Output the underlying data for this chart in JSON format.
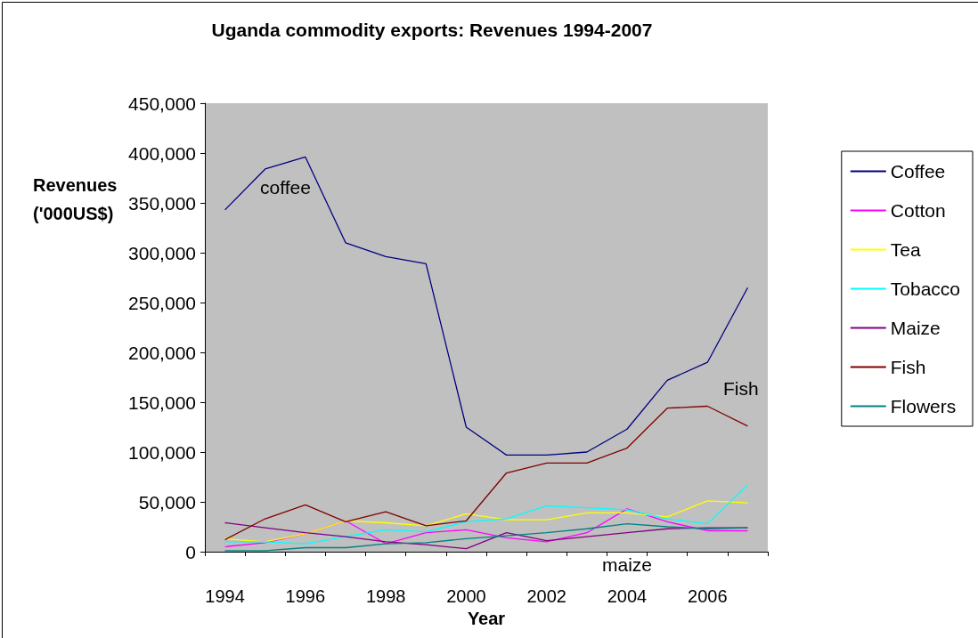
{
  "chart_data": {
    "type": "line",
    "title": "Uganda commodity exports: Revenues 1994-2007",
    "xlabel": "Year",
    "ylabel": "Revenues ('000US$)",
    "categories": [
      "1994",
      null,
      "1996",
      null,
      "1998",
      null,
      "2000",
      null,
      "2002",
      null,
      "2004",
      null,
      "2006",
      null
    ],
    "series": [
      {
        "name": "Coffee",
        "color": "#000080",
        "values": [
          343000,
          384000,
          396000,
          310000,
          296000,
          289000,
          125000,
          97000,
          97000,
          100000,
          123000,
          172000,
          190000,
          265000
        ]
      },
      {
        "name": "Cotton",
        "color": "#ff00ff",
        "values": [
          5000,
          9000,
          18000,
          31000,
          8000,
          19000,
          22000,
          14000,
          10000,
          19000,
          43000,
          30000,
          21000,
          21000
        ]
      },
      {
        "name": "Tea",
        "color": "#ffff00",
        "values": [
          13000,
          10000,
          18000,
          31000,
          29000,
          26000,
          38000,
          32000,
          32000,
          39000,
          39000,
          35000,
          51000,
          49000
        ]
      },
      {
        "name": "Tobacco",
        "color": "#00ffff",
        "values": [
          10000,
          10000,
          8000,
          15000,
          22000,
          20000,
          30000,
          33000,
          46000,
          44000,
          42000,
          33000,
          28000,
          67000
        ]
      },
      {
        "name": "Maize",
        "color": "#800080",
        "values": [
          29000,
          24000,
          19000,
          15000,
          10000,
          7000,
          3000,
          19000,
          11000,
          15000,
          19000,
          23000,
          24000,
          24000
        ]
      },
      {
        "name": "Fish",
        "color": "#800000",
        "values": [
          12000,
          33000,
          47000,
          30000,
          40000,
          26000,
          31000,
          79000,
          89000,
          89000,
          104000,
          144000,
          146000,
          126000
        ]
      },
      {
        "name": "Flowers",
        "color": "#008080",
        "values": [
          1000,
          1000,
          4000,
          4000,
          8000,
          9000,
          13000,
          16000,
          19000,
          23000,
          28000,
          25000,
          23000,
          24000
        ]
      }
    ],
    "annotations": [
      "coffee",
      "Fish",
      "maize"
    ],
    "ylim": [
      0,
      450000
    ],
    "yticks": [
      0,
      {
        "value": 50000,
        "label": "50,000"
      },
      {
        "value": 100000,
        "label": "100,000"
      },
      {
        "value": 150000,
        "label": "150,000"
      },
      {
        "value": 200000,
        "label": "200,000"
      },
      {
        "value": 250000,
        "label": "250,000"
      },
      {
        "value": 300000,
        "label": "300,000"
      },
      {
        "value": 350000,
        "label": "350,000"
      },
      {
        "value": 400000,
        "label": "400,000"
      },
      {
        "value": 450000,
        "label": "450,000"
      }
    ],
    "grid": false,
    "legend": "right",
    "marker": "none",
    "line_style": "solid"
  }
}
